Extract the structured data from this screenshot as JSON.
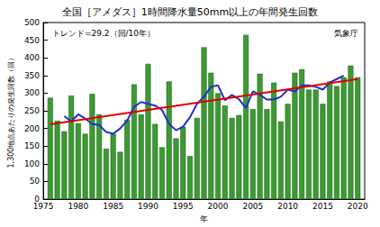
{
  "chart_data": {
    "type": "bar",
    "title": "全国［アメダス］1時間降水量50mm以上の年間発生回数",
    "x_label": "年",
    "y_label": "1,300地点あたりの発生回数（回）",
    "annotations": [
      "トレンド=29.2（回/10年）",
      "気象庁"
    ],
    "x": [
      1976,
      1977,
      1978,
      1979,
      1980,
      1981,
      1982,
      1983,
      1984,
      1985,
      1986,
      1987,
      1988,
      1989,
      1990,
      1991,
      1992,
      1993,
      1994,
      1995,
      1996,
      1997,
      1998,
      1999,
      2000,
      2001,
      2002,
      2003,
      2004,
      2005,
      2006,
      2007,
      2008,
      2009,
      2010,
      2011,
      2012,
      2013,
      2014,
      2015,
      2016,
      2017,
      2018,
      2019,
      2020
    ],
    "series": [
      {
        "type": "bar",
        "color": "#3c9a32",
        "values": [
          287,
          222,
          192,
          293,
          215,
          185,
          298,
          240,
          143,
          185,
          134,
          225,
          325,
          240,
          383,
          213,
          147,
          333,
          172,
          205,
          122,
          230,
          430,
          358,
          300,
          265,
          230,
          238,
          465,
          255,
          355,
          255,
          330,
          220,
          270,
          358,
          368,
          310,
          310,
          270,
          333,
          320,
          345,
          378,
          345
        ]
      },
      {
        "type": "line",
        "color": "#1f2fd0",
        "values": [
          null,
          null,
          235,
          220,
          240,
          228,
          213,
          210,
          190,
          185,
          200,
          222,
          262,
          275,
          270,
          265,
          252,
          213,
          195,
          205,
          232,
          270,
          290,
          318,
          322,
          280,
          295,
          283,
          258,
          305,
          295,
          282,
          282,
          290,
          310,
          305,
          322,
          322,
          318,
          310,
          330,
          340,
          350,
          null,
          null
        ]
      },
      {
        "type": "line",
        "color": "#e00000",
        "x": [
          1976,
          2020
        ],
        "values": [
          212,
          340
        ]
      }
    ],
    "xlim": [
      1975,
      2021
    ],
    "xticks": [
      1975,
      1980,
      1985,
      1990,
      1995,
      2000,
      2005,
      2010,
      2015,
      2020
    ],
    "ylim": [
      0,
      500
    ],
    "yticks": [
      0,
      50,
      100,
      150,
      200,
      250,
      300,
      350,
      400,
      450,
      500
    ],
    "grid": false
  }
}
